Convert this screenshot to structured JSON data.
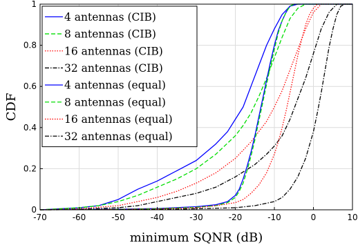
{
  "chart_data": {
    "type": "line",
    "title": "",
    "xlabel": "minimum SQNR (dB)",
    "ylabel": "CDF",
    "xlim": [
      -70,
      10
    ],
    "ylim": [
      0,
      1
    ],
    "xticks": [
      "-70",
      "-60",
      "-50",
      "-40",
      "-30",
      "-20",
      "-10",
      "0",
      "10"
    ],
    "yticks": [
      "0",
      "0.2",
      "0.4",
      "0.6",
      "0.8",
      "1"
    ],
    "grid": true,
    "legend_position": "top-left",
    "series": [
      {
        "name": "4 antennas (CIB)",
        "color": "#0000ff",
        "dash": "solid",
        "points": [
          [
            -70,
            0
          ],
          [
            -60,
            0.01
          ],
          [
            -55,
            0.02
          ],
          [
            -50,
            0.05
          ],
          [
            -45,
            0.1
          ],
          [
            -40,
            0.14
          ],
          [
            -35,
            0.19
          ],
          [
            -30,
            0.24
          ],
          [
            -25,
            0.32
          ],
          [
            -22,
            0.38
          ],
          [
            -20,
            0.44
          ],
          [
            -18,
            0.5
          ],
          [
            -16,
            0.6
          ],
          [
            -14,
            0.7
          ],
          [
            -12,
            0.8
          ],
          [
            -10,
            0.88
          ],
          [
            -8,
            0.95
          ],
          [
            -6,
            0.99
          ],
          [
            -4,
            1
          ],
          [
            10,
            1
          ]
        ]
      },
      {
        "name": "8 antennas (CIB)",
        "color": "#00dd00",
        "dash": "dashed",
        "points": [
          [
            -70,
            0
          ],
          [
            -60,
            0.01
          ],
          [
            -55,
            0.02
          ],
          [
            -50,
            0.04
          ],
          [
            -45,
            0.07
          ],
          [
            -40,
            0.11
          ],
          [
            -35,
            0.15
          ],
          [
            -30,
            0.2
          ],
          [
            -25,
            0.27
          ],
          [
            -20,
            0.36
          ],
          [
            -18,
            0.41
          ],
          [
            -16,
            0.47
          ],
          [
            -14,
            0.55
          ],
          [
            -12,
            0.64
          ],
          [
            -10,
            0.74
          ],
          [
            -8,
            0.84
          ],
          [
            -6,
            0.93
          ],
          [
            -4,
            0.98
          ],
          [
            -2,
            1
          ],
          [
            10,
            1
          ]
        ]
      },
      {
        "name": "16 antennas (CIB)",
        "color": "#ff0000",
        "dash": "dotted",
        "points": [
          [
            -70,
            0
          ],
          [
            -60,
            0.005
          ],
          [
            -50,
            0.02
          ],
          [
            -45,
            0.04
          ],
          [
            -40,
            0.06
          ],
          [
            -35,
            0.09
          ],
          [
            -30,
            0.13
          ],
          [
            -25,
            0.18
          ],
          [
            -20,
            0.25
          ],
          [
            -16,
            0.33
          ],
          [
            -12,
            0.43
          ],
          [
            -10,
            0.5
          ],
          [
            -8,
            0.58
          ],
          [
            -6,
            0.68
          ],
          [
            -4,
            0.78
          ],
          [
            -2,
            0.88
          ],
          [
            0,
            0.96
          ],
          [
            2,
            1
          ],
          [
            10,
            1
          ]
        ]
      },
      {
        "name": "32 antennas (CIB)",
        "color": "#000000",
        "dash": "dashdot",
        "points": [
          [
            -70,
            0
          ],
          [
            -60,
            0.003
          ],
          [
            -50,
            0.01
          ],
          [
            -45,
            0.02
          ],
          [
            -40,
            0.04
          ],
          [
            -35,
            0.06
          ],
          [
            -30,
            0.08
          ],
          [
            -25,
            0.11
          ],
          [
            -20,
            0.16
          ],
          [
            -15,
            0.22
          ],
          [
            -12,
            0.27
          ],
          [
            -10,
            0.31
          ],
          [
            -8,
            0.36
          ],
          [
            -6,
            0.44
          ],
          [
            -4,
            0.54
          ],
          [
            -2,
            0.64
          ],
          [
            0,
            0.76
          ],
          [
            2,
            0.88
          ],
          [
            4,
            0.96
          ],
          [
            6,
            1
          ],
          [
            10,
            1
          ]
        ]
      },
      {
        "name": "4 antennas (equal)",
        "color": "#0000ff",
        "dash": "solid",
        "points": [
          [
            -70,
            0
          ],
          [
            -50,
            0.003
          ],
          [
            -40,
            0.006
          ],
          [
            -30,
            0.015
          ],
          [
            -25,
            0.025
          ],
          [
            -22,
            0.04
          ],
          [
            -20,
            0.07
          ],
          [
            -19,
            0.1
          ],
          [
            -18,
            0.15
          ],
          [
            -17,
            0.21
          ],
          [
            -16,
            0.28
          ],
          [
            -15,
            0.36
          ],
          [
            -14,
            0.45
          ],
          [
            -13,
            0.54
          ],
          [
            -12,
            0.63
          ],
          [
            -11,
            0.72
          ],
          [
            -10,
            0.8
          ],
          [
            -9,
            0.87
          ],
          [
            -8,
            0.92
          ],
          [
            -7,
            0.96
          ],
          [
            -6,
            0.99
          ],
          [
            -5,
            1
          ],
          [
            10,
            1
          ]
        ]
      },
      {
        "name": "8 antennas (equal)",
        "color": "#00dd00",
        "dash": "dashed",
        "points": [
          [
            -70,
            0
          ],
          [
            -50,
            0.002
          ],
          [
            -40,
            0.005
          ],
          [
            -30,
            0.012
          ],
          [
            -25,
            0.02
          ],
          [
            -22,
            0.035
          ],
          [
            -20,
            0.06
          ],
          [
            -19,
            0.09
          ],
          [
            -18,
            0.13
          ],
          [
            -17,
            0.19
          ],
          [
            -16,
            0.26
          ],
          [
            -15,
            0.34
          ],
          [
            -14,
            0.43
          ],
          [
            -13,
            0.52
          ],
          [
            -12,
            0.61
          ],
          [
            -11,
            0.7
          ],
          [
            -10,
            0.78
          ],
          [
            -9,
            0.86
          ],
          [
            -8,
            0.92
          ],
          [
            -7,
            0.96
          ],
          [
            -6,
            0.99
          ],
          [
            -5,
            1
          ],
          [
            10,
            1
          ]
        ]
      },
      {
        "name": "16 antennas (equal)",
        "color": "#ff0000",
        "dash": "dotted",
        "points": [
          [
            -70,
            0
          ],
          [
            -50,
            0.002
          ],
          [
            -40,
            0.004
          ],
          [
            -30,
            0.01
          ],
          [
            -25,
            0.02
          ],
          [
            -20,
            0.035
          ],
          [
            -18,
            0.05
          ],
          [
            -16,
            0.08
          ],
          [
            -14,
            0.12
          ],
          [
            -12,
            0.18
          ],
          [
            -10,
            0.27
          ],
          [
            -9,
            0.33
          ],
          [
            -8,
            0.4
          ],
          [
            -7,
            0.48
          ],
          [
            -6,
            0.57
          ],
          [
            -5,
            0.66
          ],
          [
            -4,
            0.75
          ],
          [
            -3,
            0.83
          ],
          [
            -2,
            0.9
          ],
          [
            -1,
            0.95
          ],
          [
            0,
            0.98
          ],
          [
            1,
            1
          ],
          [
            10,
            1
          ]
        ]
      },
      {
        "name": "32 antennas (equal)",
        "color": "#000000",
        "dash": "dashdot",
        "points": [
          [
            -70,
            0
          ],
          [
            -40,
            0.002
          ],
          [
            -30,
            0.005
          ],
          [
            -20,
            0.01
          ],
          [
            -15,
            0.02
          ],
          [
            -10,
            0.04
          ],
          [
            -8,
            0.06
          ],
          [
            -6,
            0.1
          ],
          [
            -4,
            0.16
          ],
          [
            -2,
            0.25
          ],
          [
            0,
            0.38
          ],
          [
            1,
            0.47
          ],
          [
            2,
            0.57
          ],
          [
            3,
            0.68
          ],
          [
            4,
            0.79
          ],
          [
            5,
            0.88
          ],
          [
            6,
            0.95
          ],
          [
            7,
            0.99
          ],
          [
            8,
            1
          ],
          [
            10,
            1
          ]
        ]
      }
    ]
  }
}
